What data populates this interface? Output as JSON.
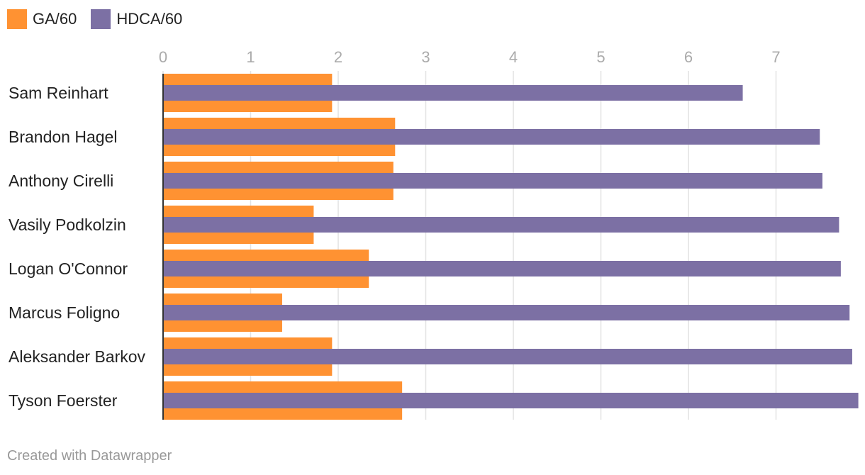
{
  "colors": {
    "ga": "#FF9232",
    "hdca": "#7C70A4",
    "grid": "#e2e2e2",
    "axis": "#333333"
  },
  "legend": {
    "items": [
      {
        "label": "GA/60",
        "color": "#FF9232"
      },
      {
        "label": "HDCA/60",
        "color": "#7C70A4"
      }
    ]
  },
  "footer": {
    "credit": "Created with Datawrapper"
  },
  "chart_data": {
    "type": "bar",
    "orientation": "horizontal",
    "categories": [
      "Sam Reinhart",
      "Brandon Hagel",
      "Anthony Cirelli",
      "Vasily Podkolzin",
      "Logan O'Connor",
      "Marcus Foligno",
      "Aleksander Barkov",
      "Tyson Foerster"
    ],
    "series": [
      {
        "name": "GA/60",
        "values": [
          1.93,
          2.65,
          2.63,
          1.72,
          2.35,
          1.36,
          1.93,
          2.73
        ]
      },
      {
        "name": "HDCA/60",
        "values": [
          6.62,
          7.5,
          7.53,
          7.72,
          7.74,
          7.84,
          7.87,
          7.94
        ]
      }
    ],
    "xlim": [
      0,
      7.94
    ],
    "xticks": [
      0,
      1,
      2,
      3,
      4,
      5,
      6,
      7
    ],
    "grid": true,
    "legend_position": "top-left",
    "title": "",
    "xlabel": "",
    "ylabel": ""
  }
}
